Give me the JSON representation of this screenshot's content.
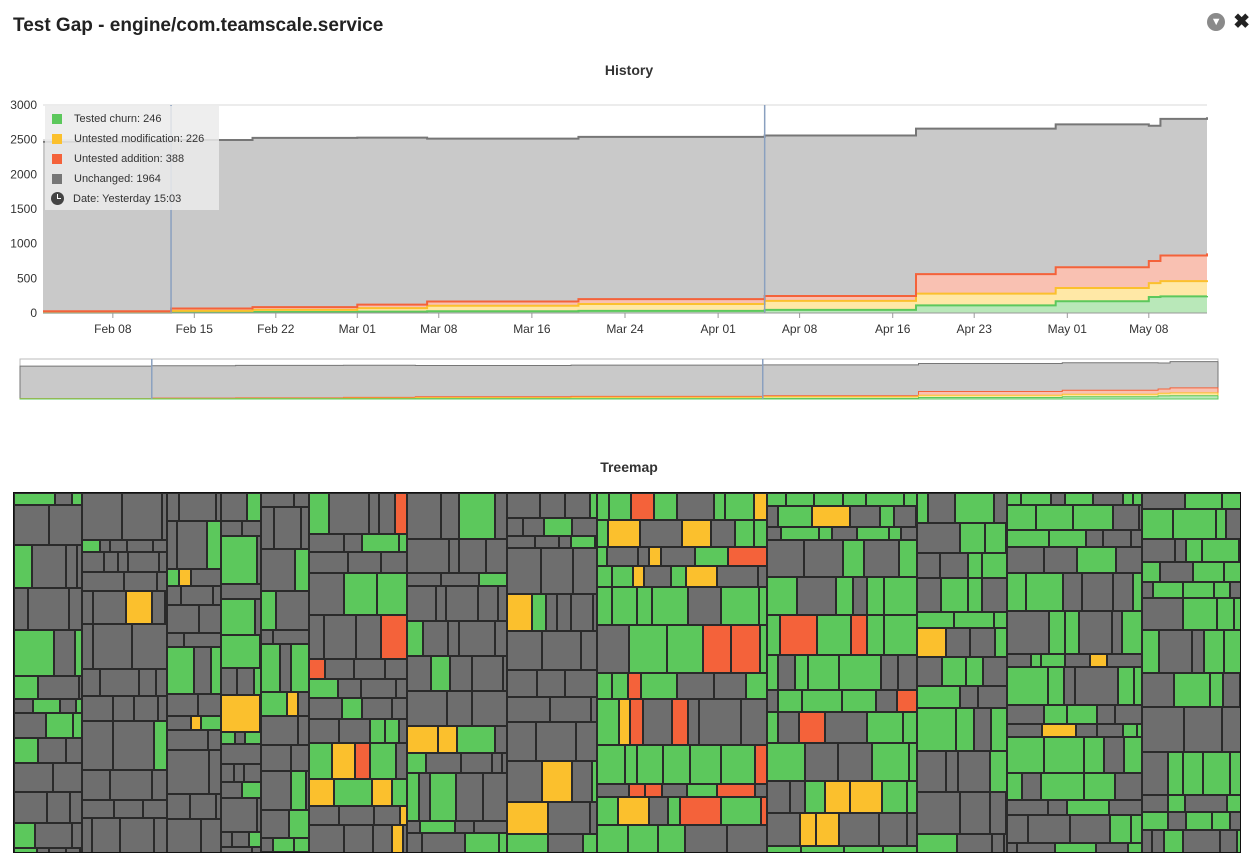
{
  "header": {
    "title": "Test Gap - engine/com.teamscale.service",
    "collapse_icon": "chevron-down-circle-icon",
    "close_icon": "close-icon"
  },
  "history": {
    "title": "History",
    "legend": [
      {
        "label": "Tested churn: 246",
        "color": "#5cc85c"
      },
      {
        "label": "Untested modification: 226",
        "color": "#fbc02d"
      },
      {
        "label": "Untested addition: 388",
        "color": "#f4623a"
      },
      {
        "label": "Unchanged: 1964",
        "color": "#767676"
      }
    ],
    "date_label": "Date: Yesterday 15:03",
    "date_icon": "clock-icon"
  },
  "treemap": {
    "title": "Treemap",
    "colors": {
      "tested": "#5cc85c",
      "untested_modification": "#fbc02d",
      "untested_addition": "#f4623a",
      "unchanged": "#6e6e6e"
    }
  },
  "chart_data": {
    "type": "area",
    "stacked": true,
    "ylim": [
      0,
      3000
    ],
    "yticks": [
      0,
      500,
      1000,
      1500,
      2000,
      2500,
      3000
    ],
    "xlim": [
      "Feb 02",
      "May 13"
    ],
    "xticks": [
      "Feb 08",
      "Feb 15",
      "Feb 22",
      "Mar 01",
      "Mar 08",
      "Mar 16",
      "Mar 24",
      "Apr 01",
      "Apr 08",
      "Apr 16",
      "Apr 23",
      "May 01",
      "May 08"
    ],
    "markers": [
      "Feb 13",
      "Apr 05"
    ],
    "grid": true,
    "legend_position": "top-left",
    "x": [
      "Feb 02",
      "Feb 13",
      "Feb 20",
      "Mar 01",
      "Mar 07",
      "Mar 20",
      "Apr 05",
      "Apr 18",
      "Apr 30",
      "May 08",
      "May 09",
      "May 13"
    ],
    "series": [
      {
        "name": "Tested churn",
        "color": "#5cc85c",
        "values": [
          5,
          10,
          15,
          20,
          25,
          30,
          45,
          110,
          170,
          230,
          240,
          246
        ]
      },
      {
        "name": "Untested modification",
        "color": "#fbc02d",
        "values": [
          10,
          20,
          30,
          50,
          80,
          100,
          130,
          170,
          190,
          200,
          220,
          226
        ]
      },
      {
        "name": "Untested addition",
        "color": "#f4623a",
        "values": [
          10,
          35,
          40,
          50,
          60,
          70,
          70,
          280,
          300,
          320,
          370,
          388
        ]
      },
      {
        "name": "Unchanged",
        "color": "#767676",
        "values": [
          2445,
          2430,
          2440,
          2410,
          2350,
          2340,
          2315,
          2100,
          2060,
          1950,
          1970,
          1964
        ]
      }
    ]
  }
}
